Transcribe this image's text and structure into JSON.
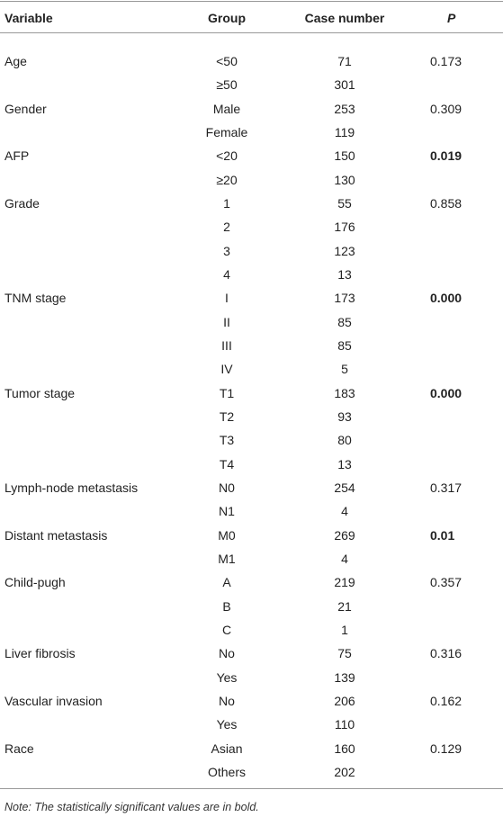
{
  "table": {
    "header": [
      "Variable",
      "Group",
      "Case number",
      "P"
    ],
    "groups": [
      {
        "variable": "Age",
        "p": "0.173",
        "p_bold": false,
        "items": [
          {
            "group": "<50",
            "case_number": 71
          },
          {
            "group": "≥50",
            "case_number": 301
          }
        ]
      },
      {
        "variable": "Gender",
        "p": "0.309",
        "p_bold": false,
        "items": [
          {
            "group": "Male",
            "case_number": 253
          },
          {
            "group": "Female",
            "case_number": 119
          }
        ]
      },
      {
        "variable": "AFP",
        "p": "0.019",
        "p_bold": true,
        "items": [
          {
            "group": "<20",
            "case_number": 150
          },
          {
            "group": "≥20",
            "case_number": 130
          }
        ]
      },
      {
        "variable": "Grade",
        "p": "0.858",
        "p_bold": false,
        "items": [
          {
            "group": "1",
            "case_number": 55
          },
          {
            "group": "2",
            "case_number": 176
          },
          {
            "group": "3",
            "case_number": 123
          },
          {
            "group": "4",
            "case_number": 13
          }
        ]
      },
      {
        "variable": "TNM stage",
        "p": "0.000",
        "p_bold": true,
        "items": [
          {
            "group": "I",
            "case_number": 173
          },
          {
            "group": "II",
            "case_number": 85
          },
          {
            "group": "III",
            "case_number": 85
          },
          {
            "group": "IV",
            "case_number": 5
          }
        ]
      },
      {
        "variable": "Tumor stage",
        "p": "0.000",
        "p_bold": true,
        "items": [
          {
            "group": "T1",
            "case_number": 183
          },
          {
            "group": "T2",
            "case_number": 93
          },
          {
            "group": "T3",
            "case_number": 80
          },
          {
            "group": "T4",
            "case_number": 13
          }
        ]
      },
      {
        "variable": "Lymph-node metastasis",
        "p": "0.317",
        "p_bold": false,
        "items": [
          {
            "group": "N0",
            "case_number": 254
          },
          {
            "group": "N1",
            "case_number": 4
          }
        ]
      },
      {
        "variable": "Distant metastasis",
        "p": "0.01",
        "p_bold": true,
        "items": [
          {
            "group": "M0",
            "case_number": 269
          },
          {
            "group": "M1",
            "case_number": 4
          }
        ]
      },
      {
        "variable": "Child-pugh",
        "p": "0.357",
        "p_bold": false,
        "items": [
          {
            "group": "A",
            "case_number": 219
          },
          {
            "group": "B",
            "case_number": 21
          },
          {
            "group": "C",
            "case_number": 1
          }
        ]
      },
      {
        "variable": "Liver fibrosis",
        "p": "0.316",
        "p_bold": false,
        "items": [
          {
            "group": "No",
            "case_number": 75
          },
          {
            "group": "Yes",
            "case_number": 139
          }
        ]
      },
      {
        "variable": "Vascular invasion",
        "p": "0.162",
        "p_bold": false,
        "items": [
          {
            "group": "No",
            "case_number": 206
          },
          {
            "group": "Yes",
            "case_number": 110
          }
        ]
      },
      {
        "variable": "Race",
        "p": "0.129",
        "p_bold": false,
        "items": [
          {
            "group": "Asian",
            "case_number": 160
          },
          {
            "group": "Others",
            "case_number": 202
          }
        ]
      }
    ],
    "note": "Note: The statistically significant values are in bold."
  }
}
